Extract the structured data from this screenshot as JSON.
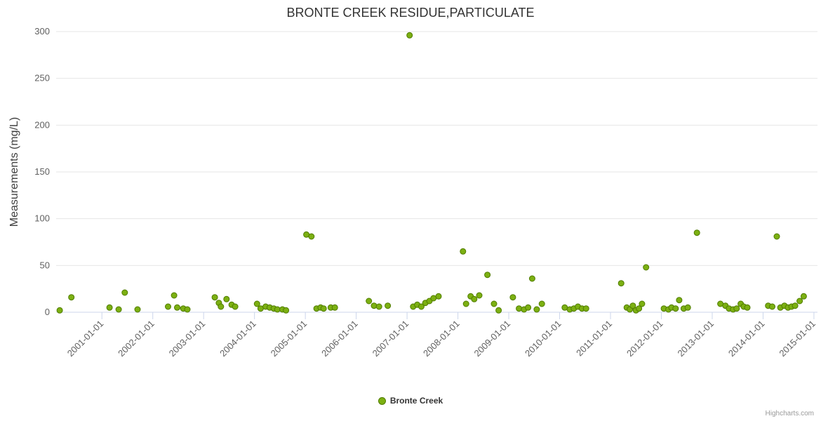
{
  "header": {
    "title": "BRONTE CREEK RESIDUE,PARTICULATE"
  },
  "credits": {
    "label": "Highcharts.com"
  },
  "legend": {
    "items": [
      {
        "label": "Bronte Creek",
        "color": "#7cb012",
        "border": "#507c00"
      }
    ]
  },
  "chart_data": {
    "type": "scatter",
    "title": "BRONTE CREEK RESIDUE,PARTICULATE",
    "xlabel": "",
    "ylabel": "Measurements (mg/L)",
    "ylim": [
      0,
      300
    ],
    "yticks": [
      0,
      50,
      100,
      150,
      200,
      250,
      300
    ],
    "xlim": [
      2000.1,
      2015.07
    ],
    "xticks": [
      {
        "value": 2001,
        "label": "2001-01-01"
      },
      {
        "value": 2002,
        "label": "2002-01-01"
      },
      {
        "value": 2003,
        "label": "2003-01-01"
      },
      {
        "value": 2004,
        "label": "2004-01-01"
      },
      {
        "value": 2005,
        "label": "2005-01-01"
      },
      {
        "value": 2006,
        "label": "2006-01-01"
      },
      {
        "value": 2007,
        "label": "2007-01-01"
      },
      {
        "value": 2008,
        "label": "2008-01-01"
      },
      {
        "value": 2009,
        "label": "2009-01-01"
      },
      {
        "value": 2010,
        "label": "2010-01-01"
      },
      {
        "value": 2011,
        "label": "2011-01-01"
      },
      {
        "value": 2012,
        "label": "2012-01-01"
      },
      {
        "value": 2013,
        "label": "2013-01-01"
      },
      {
        "value": 2014,
        "label": "2014-01-01"
      },
      {
        "value": 2015,
        "label": "2015-01-01"
      }
    ],
    "grid": true,
    "grid_color": "#e6e6e6",
    "axis_line_color": "#ccd6eb",
    "tick_label_color": "#606060",
    "legend_position": "bottom-center",
    "series": [
      {
        "name": "Bronte Creek",
        "color": "#7cb012",
        "border": "#507c00",
        "points": [
          [
            2000.17,
            2
          ],
          [
            2000.4,
            16
          ],
          [
            2001.15,
            5
          ],
          [
            2001.33,
            3
          ],
          [
            2001.45,
            21
          ],
          [
            2001.7,
            3
          ],
          [
            2002.3,
            6
          ],
          [
            2002.42,
            18
          ],
          [
            2002.48,
            5
          ],
          [
            2002.6,
            4
          ],
          [
            2002.68,
            3
          ],
          [
            2003.22,
            16
          ],
          [
            2003.3,
            10
          ],
          [
            2003.34,
            6
          ],
          [
            2003.45,
            14
          ],
          [
            2003.55,
            8
          ],
          [
            2003.62,
            6
          ],
          [
            2004.05,
            9
          ],
          [
            2004.12,
            4
          ],
          [
            2004.22,
            6
          ],
          [
            2004.3,
            5
          ],
          [
            2004.38,
            4
          ],
          [
            2004.45,
            3
          ],
          [
            2004.55,
            3
          ],
          [
            2004.62,
            2
          ],
          [
            2005.02,
            83
          ],
          [
            2005.12,
            81
          ],
          [
            2005.22,
            4
          ],
          [
            2005.3,
            5
          ],
          [
            2005.36,
            4
          ],
          [
            2005.5,
            5
          ],
          [
            2005.58,
            5
          ],
          [
            2006.25,
            12
          ],
          [
            2006.35,
            7
          ],
          [
            2006.45,
            6
          ],
          [
            2006.62,
            7
          ],
          [
            2007.05,
            296
          ],
          [
            2007.12,
            6
          ],
          [
            2007.2,
            8
          ],
          [
            2007.28,
            6
          ],
          [
            2007.36,
            10
          ],
          [
            2007.44,
            12
          ],
          [
            2007.52,
            15
          ],
          [
            2007.62,
            17
          ],
          [
            2008.1,
            65
          ],
          [
            2008.16,
            9
          ],
          [
            2008.25,
            17
          ],
          [
            2008.32,
            14
          ],
          [
            2008.42,
            18
          ],
          [
            2008.58,
            40
          ],
          [
            2008.71,
            9
          ],
          [
            2008.8,
            2
          ],
          [
            2009.08,
            16
          ],
          [
            2009.2,
            4
          ],
          [
            2009.3,
            3
          ],
          [
            2009.38,
            5
          ],
          [
            2009.46,
            36
          ],
          [
            2009.55,
            3
          ],
          [
            2009.65,
            9
          ],
          [
            2010.1,
            5
          ],
          [
            2010.2,
            3
          ],
          [
            2010.28,
            4
          ],
          [
            2010.36,
            6
          ],
          [
            2010.44,
            4
          ],
          [
            2010.52,
            4
          ],
          [
            2011.21,
            31
          ],
          [
            2011.32,
            5
          ],
          [
            2011.38,
            3
          ],
          [
            2011.44,
            7
          ],
          [
            2011.5,
            2
          ],
          [
            2011.56,
            4
          ],
          [
            2011.62,
            9
          ],
          [
            2011.7,
            48
          ],
          [
            2012.05,
            4
          ],
          [
            2012.14,
            3
          ],
          [
            2012.2,
            5
          ],
          [
            2012.28,
            4
          ],
          [
            2012.35,
            13
          ],
          [
            2012.44,
            4
          ],
          [
            2012.52,
            5
          ],
          [
            2012.7,
            85
          ],
          [
            2013.16,
            9
          ],
          [
            2013.26,
            7
          ],
          [
            2013.33,
            4
          ],
          [
            2013.41,
            3
          ],
          [
            2013.48,
            4
          ],
          [
            2013.56,
            9
          ],
          [
            2013.62,
            6
          ],
          [
            2013.69,
            5
          ],
          [
            2014.1,
            7
          ],
          [
            2014.18,
            6
          ],
          [
            2014.27,
            81
          ],
          [
            2014.34,
            5
          ],
          [
            2014.42,
            7
          ],
          [
            2014.49,
            5
          ],
          [
            2014.56,
            6
          ],
          [
            2014.63,
            7
          ],
          [
            2014.72,
            12
          ],
          [
            2014.8,
            17
          ]
        ]
      }
    ]
  }
}
